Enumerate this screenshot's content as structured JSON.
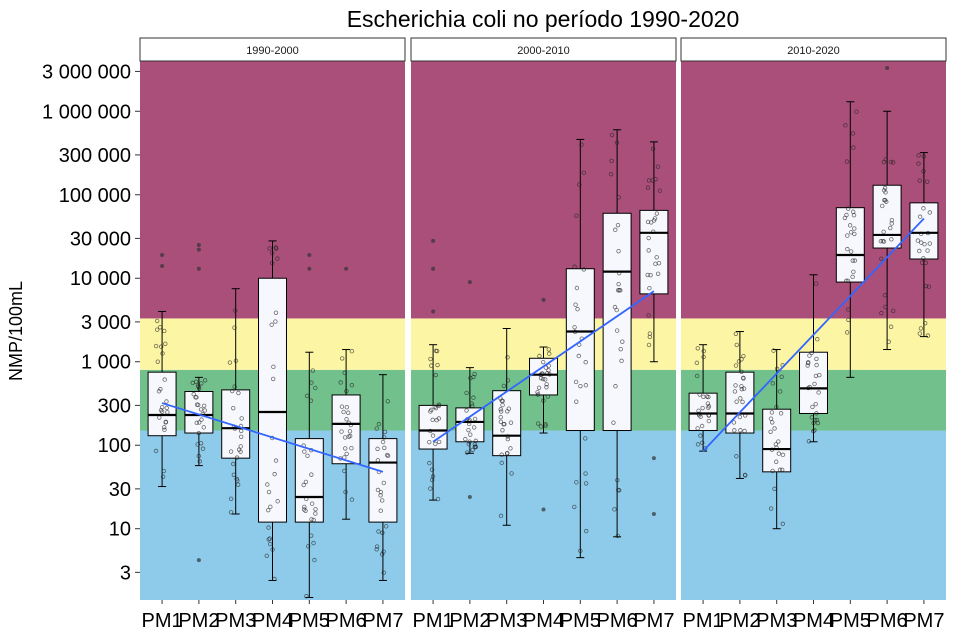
{
  "chart_data": {
    "type": "boxplot",
    "title": "Escherichia coli no período 1990-2020",
    "xlabel": "",
    "ylabel": "NMP/100mL",
    "y_scale": "log10",
    "ylim": [
      1.4,
      4000000
    ],
    "y_ticks": [
      {
        "value": 3,
        "label": "3"
      },
      {
        "value": 10,
        "label": "10"
      },
      {
        "value": 30,
        "label": "30"
      },
      {
        "value": 100,
        "label": "100"
      },
      {
        "value": 300,
        "label": "300"
      },
      {
        "value": 1000,
        "label": "1 000"
      },
      {
        "value": 3000,
        "label": "3 000"
      },
      {
        "value": 10000,
        "label": "10 000"
      },
      {
        "value": 30000,
        "label": "30 000"
      },
      {
        "value": 100000,
        "label": "100 000"
      },
      {
        "value": 300000,
        "label": "300 000"
      },
      {
        "value": 1000000,
        "label": "1 000 000"
      },
      {
        "value": 3000000,
        "label": "3 000 000"
      }
    ],
    "categories": [
      "PM1",
      "PM2",
      "PM3",
      "PM4",
      "PM5",
      "PM6",
      "PM7"
    ],
    "background_bands": [
      {
        "from": 0,
        "to": 150,
        "color": "#8ecbea"
      },
      {
        "from": 150,
        "to": 800,
        "color": "#72c08c"
      },
      {
        "from": 800,
        "to": 3300,
        "color": "#fbf5a4"
      },
      {
        "from": 3300,
        "to": 100000000,
        "color": "#a94f79"
      }
    ],
    "colors": {
      "box_fill": "#f7f8fd",
      "trend_line": "#3366ff",
      "point": "#222222"
    },
    "panels": [
      {
        "label": "1990-2000",
        "boxes": [
          {
            "station": "PM1",
            "whisker_low": 32,
            "q1": 130,
            "median": 230,
            "q3": 750,
            "whisker_high": 4000
          },
          {
            "station": "PM2",
            "whisker_low": 57,
            "q1": 140,
            "median": 230,
            "q3": 440,
            "whisker_high": 650
          },
          {
            "station": "PM3",
            "whisker_low": 15,
            "q1": 70,
            "median": 160,
            "q3": 460,
            "whisker_high": 7500
          },
          {
            "station": "PM4",
            "whisker_low": 2.4,
            "q1": 12,
            "median": 250,
            "q3": 10000,
            "whisker_high": 28000
          },
          {
            "station": "PM5",
            "whisker_low": 1.5,
            "q1": 12,
            "median": 24,
            "q3": 120,
            "whisker_high": 1300
          },
          {
            "station": "PM6",
            "whisker_low": 13,
            "q1": 60,
            "median": 180,
            "q3": 400,
            "whisker_high": 1400
          },
          {
            "station": "PM7",
            "whisker_low": 2.4,
            "q1": 12,
            "median": 62,
            "q3": 120,
            "whisker_high": 700
          }
        ],
        "outliers": [
          {
            "station": "PM1",
            "value": 19000
          },
          {
            "station": "PM1",
            "value": 14000
          },
          {
            "station": "PM2",
            "value": 25000
          },
          {
            "station": "PM2",
            "value": 22000
          },
          {
            "station": "PM2",
            "value": 13000
          },
          {
            "station": "PM2",
            "value": 4.2
          },
          {
            "station": "PM5",
            "value": 19000
          },
          {
            "station": "PM5",
            "value": 13000
          },
          {
            "station": "PM6",
            "value": 13000
          }
        ],
        "trend": {
          "from": 320,
          "to": 48
        }
      },
      {
        "label": "2000-2010",
        "boxes": [
          {
            "station": "PM1",
            "whisker_low": 22,
            "q1": 90,
            "median": 150,
            "q3": 300,
            "whisker_high": 1600
          },
          {
            "station": "PM2",
            "whisker_low": 80,
            "q1": 110,
            "median": 190,
            "q3": 280,
            "whisker_high": 850
          },
          {
            "station": "PM3",
            "whisker_low": 11,
            "q1": 75,
            "median": 130,
            "q3": 450,
            "whisker_high": 2500
          },
          {
            "station": "PM4",
            "whisker_low": 140,
            "q1": 400,
            "median": 700,
            "q3": 1100,
            "whisker_high": 1500
          },
          {
            "station": "PM5",
            "whisker_low": 4.5,
            "q1": 150,
            "median": 2300,
            "q3": 13000,
            "whisker_high": 460000
          },
          {
            "station": "PM6",
            "whisker_low": 8,
            "q1": 150,
            "median": 12000,
            "q3": 60000,
            "whisker_high": 600000
          },
          {
            "station": "PM7",
            "whisker_low": 1000,
            "q1": 6500,
            "median": 35000,
            "q3": 65000,
            "whisker_high": 430000
          }
        ],
        "outliers": [
          {
            "station": "PM1",
            "value": 28000
          },
          {
            "station": "PM1",
            "value": 13000
          },
          {
            "station": "PM1",
            "value": 4000
          },
          {
            "station": "PM2",
            "value": 9000
          },
          {
            "station": "PM2",
            "value": 24
          },
          {
            "station": "PM4",
            "value": 5500
          },
          {
            "station": "PM4",
            "value": 17
          },
          {
            "station": "PM7",
            "value": 70
          },
          {
            "station": "PM7",
            "value": 15
          }
        ],
        "trend": {
          "from": 110,
          "to": 7000
        }
      },
      {
        "label": "2010-2020",
        "boxes": [
          {
            "station": "PM1",
            "whisker_low": 85,
            "q1": 150,
            "median": 240,
            "q3": 420,
            "whisker_high": 1600
          },
          {
            "station": "PM2",
            "whisker_low": 40,
            "q1": 140,
            "median": 240,
            "q3": 750,
            "whisker_high": 2300
          },
          {
            "station": "PM3",
            "whisker_low": 10,
            "q1": 48,
            "median": 90,
            "q3": 270,
            "whisker_high": 1400
          },
          {
            "station": "PM4",
            "whisker_low": 110,
            "q1": 240,
            "median": 480,
            "q3": 1300,
            "whisker_high": 11000
          },
          {
            "station": "PM5",
            "whisker_low": 650,
            "q1": 9000,
            "median": 19000,
            "q3": 70000,
            "whisker_high": 1300000
          },
          {
            "station": "PM6",
            "whisker_low": 1400,
            "q1": 23000,
            "median": 33000,
            "q3": 130000,
            "whisker_high": 1000000
          },
          {
            "station": "PM7",
            "whisker_low": 2000,
            "q1": 17000,
            "median": 35000,
            "q3": 80000,
            "whisker_high": 320000
          }
        ],
        "outliers": [
          {
            "station": "PM6",
            "value": 3300000
          }
        ],
        "trend": {
          "from": 85,
          "to": 52000
        }
      }
    ]
  }
}
